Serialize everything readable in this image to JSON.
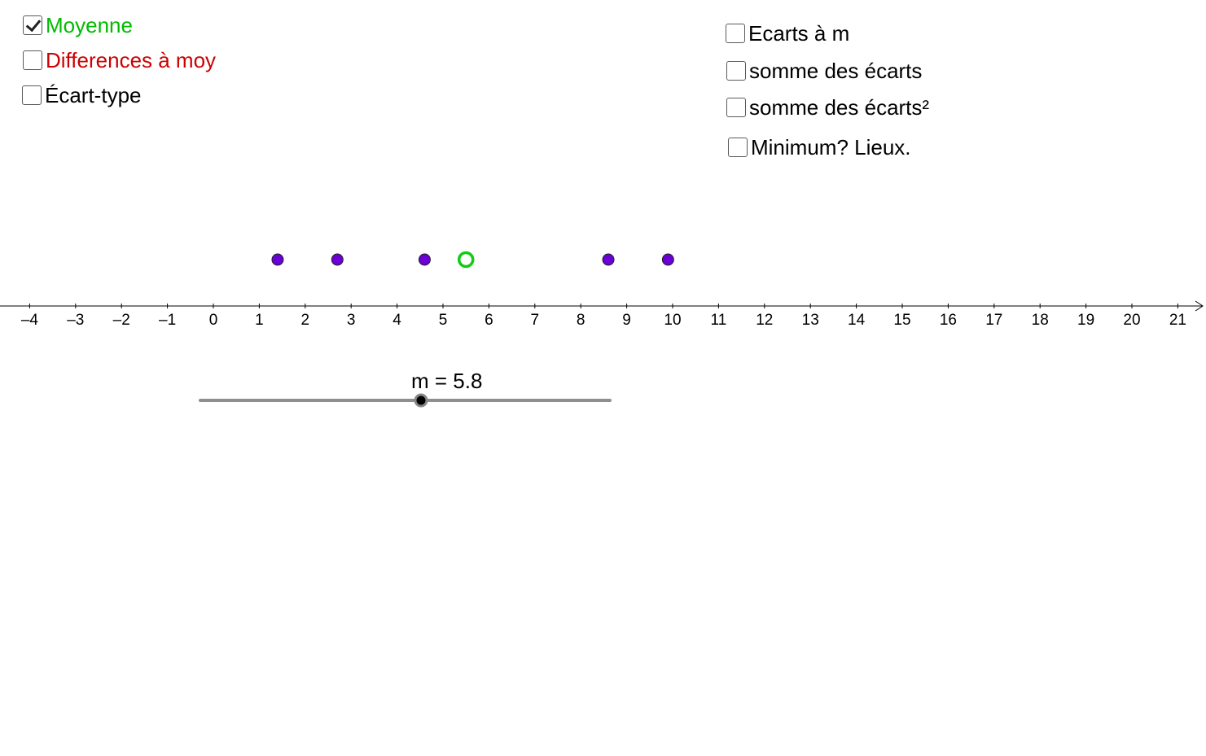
{
  "checkboxes_left": [
    {
      "label": "Moyenne",
      "checked": true,
      "color": "#00bb00"
    },
    {
      "label": "Differences à moy",
      "checked": false,
      "color": "#cc0000"
    },
    {
      "label": "Écart-type",
      "checked": false,
      "color": "#000000"
    }
  ],
  "checkboxes_right": [
    {
      "label": "Ecarts à m",
      "checked": false,
      "color": "#000000"
    },
    {
      "label": "somme des écarts",
      "checked": false,
      "color": "#000000"
    },
    {
      "label": "somme des écarts²",
      "checked": false,
      "color": "#000000"
    },
    {
      "label": "Minimum? Lieux.",
      "checked": false,
      "color": "#000000"
    }
  ],
  "axis": {
    "ticks": [
      "–4",
      "–3",
      "–2",
      "–1",
      "0",
      "1",
      "2",
      "3",
      "4",
      "5",
      "6",
      "7",
      "8",
      "9",
      "10",
      "11",
      "12",
      "13",
      "14",
      "15",
      "16",
      "17",
      "18",
      "19",
      "20",
      "21"
    ],
    "min": -4,
    "max": 21
  },
  "data_points": [
    1.4,
    2.7,
    4.6,
    8.6,
    9.9
  ],
  "mean_point": 5.5,
  "point_color": "#6a00d4",
  "mean_color": "#11cc11",
  "slider": {
    "label": "m = 5.8",
    "value": 5.8
  }
}
